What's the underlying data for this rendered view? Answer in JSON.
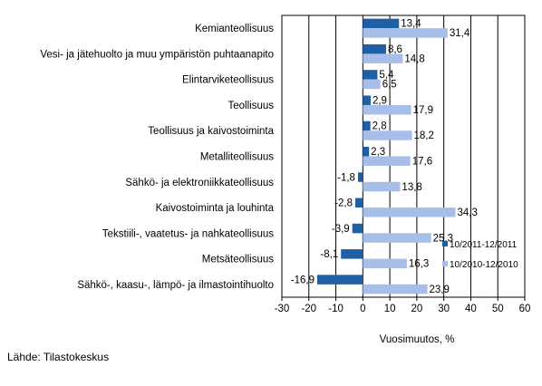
{
  "chart_data": {
    "type": "bar",
    "orientation": "horizontal",
    "categories": [
      "Kemianteollisuus",
      "Vesi- ja jätehuolto ja muu ympäristön puhtaanapito",
      "Elintarviketeollisuus",
      "Teollisuus",
      "Teollisuus ja kaivostoiminta",
      "Metalliteollisuus",
      "Sähkö- ja elektroniikkateollisuus",
      "Kaivostoiminta ja louhinta",
      "Tekstiili-, vaatetus- ja nahkateollisuus",
      "Metsäteollisuus",
      "Sähkö-, kaasu-, lämpö- ja ilmastointihuolto"
    ],
    "series": [
      {
        "name": "10/2011-12/2011",
        "color": "#1f5fa5",
        "values": [
          13.4,
          8.6,
          5.4,
          2.9,
          2.8,
          2.3,
          -1.8,
          -2.8,
          -3.9,
          -8.1,
          -16.9
        ]
      },
      {
        "name": "10/2010-12/2010",
        "color": "#a7bfe8",
        "values": [
          31.4,
          14.8,
          6.5,
          17.9,
          18.2,
          17.6,
          13.8,
          34.3,
          25.3,
          16.3,
          23.9
        ]
      }
    ],
    "value_labels": [
      [
        "13,4",
        "8,6",
        "5,4",
        "2,9",
        "2,8",
        "2,3",
        "-1,8",
        "-2,8",
        "-3,9",
        "-8,1",
        "-16,9"
      ],
      [
        "31,4",
        "14,8",
        "6,5",
        "17,9",
        "18,2",
        "17,6",
        "13,8",
        "34,3",
        "25,3",
        "16,3",
        "23,9"
      ]
    ],
    "xlim": [
      -30,
      60
    ],
    "x_ticks": [
      -30,
      -20,
      -10,
      0,
      10,
      20,
      30,
      40,
      50,
      60
    ],
    "x_tick_labels": [
      "-30",
      "-20",
      "-10",
      "0",
      "10",
      "20",
      "30",
      "40",
      "50",
      "60"
    ],
    "xlabel": "Vuosimuutos, %",
    "grid": true,
    "legend_position": "right"
  },
  "source": "Lähde: Tilastokeskus"
}
